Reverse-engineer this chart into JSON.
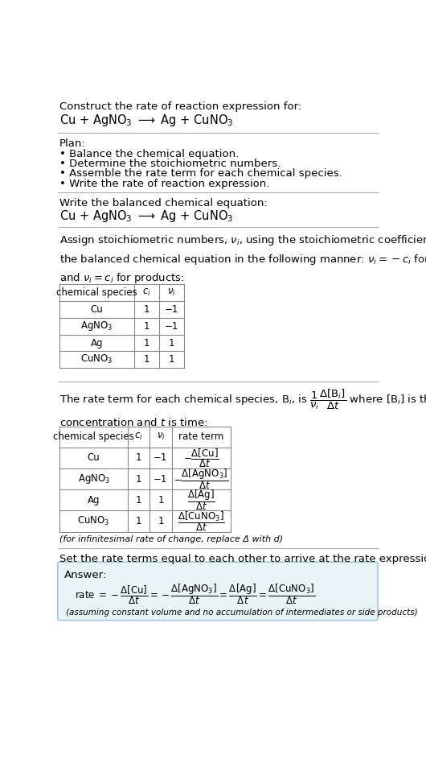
{
  "bg_color": "#ffffff",
  "text_color": "#000000",
  "section1_title": "Construct the rate of reaction expression for:",
  "section1_equation": "Cu + AgNO$_3$ $\\longrightarrow$ Ag + CuNO$_3$",
  "plan_title": "Plan:",
  "plan_bullets": [
    "• Balance the chemical equation.",
    "• Determine the stoichiometric numbers.",
    "• Assemble the rate term for each chemical species.",
    "• Write the rate of reaction expression."
  ],
  "section2_title": "Write the balanced chemical equation:",
  "section2_equation": "Cu + AgNO$_3$ $\\longrightarrow$ Ag + CuNO$_3$",
  "section3_intro": "Assign stoichiometric numbers, $\\nu_i$, using the stoichiometric coefficients, $c_i$, from\nthe balanced chemical equation in the following manner: $\\nu_i = -c_i$ for reactants\nand $\\nu_i = c_i$ for products:",
  "table1_headers": [
    "chemical species",
    "$c_i$",
    "$\\nu_i$"
  ],
  "table1_rows": [
    [
      "Cu",
      "1",
      "−1"
    ],
    [
      "AgNO$_3$",
      "1",
      "−1"
    ],
    [
      "Ag",
      "1",
      "1"
    ],
    [
      "CuNO$_3$",
      "1",
      "1"
    ]
  ],
  "section4_intro": "The rate term for each chemical species, B$_i$, is $\\dfrac{1}{\\nu_i}\\dfrac{\\Delta[\\mathrm{B}_i]}{\\Delta t}$ where [B$_i$] is the amount\nconcentration and $t$ is time:",
  "table2_headers": [
    "chemical species",
    "$c_i$",
    "$\\nu_i$",
    "rate term"
  ],
  "table2_rows": [
    [
      "Cu",
      "1",
      "−1",
      "$-\\dfrac{\\Delta[\\mathrm{Cu}]}{\\Delta t}$"
    ],
    [
      "AgNO$_3$",
      "1",
      "−1",
      "$-\\dfrac{\\Delta[\\mathrm{AgNO_3}]}{\\Delta t}$"
    ],
    [
      "Ag",
      "1",
      "1",
      "$\\dfrac{\\Delta[\\mathrm{Ag}]}{\\Delta t}$"
    ],
    [
      "CuNO$_3$",
      "1",
      "1",
      "$\\dfrac{\\Delta[\\mathrm{CuNO_3}]}{\\Delta t}$"
    ]
  ],
  "infinitesimal_note": "(for infinitesimal rate of change, replace Δ with d)",
  "section5_intro": "Set the rate terms equal to each other to arrive at the rate expression:",
  "answer_box_color": "#e8f4f8",
  "answer_box_border": "#a0c8d8",
  "answer_label": "Answer:",
  "answer_rate_expr": "rate $= -\\dfrac{\\Delta[\\mathrm{Cu}]}{\\Delta t} = -\\dfrac{\\Delta[\\mathrm{AgNO_3}]}{\\Delta t} = \\dfrac{\\Delta[\\mathrm{Ag}]}{\\Delta t} = \\dfrac{\\Delta[\\mathrm{CuNO_3}]}{\\Delta t}$",
  "answer_note": "(assuming constant volume and no accumulation of intermediates or side products)"
}
